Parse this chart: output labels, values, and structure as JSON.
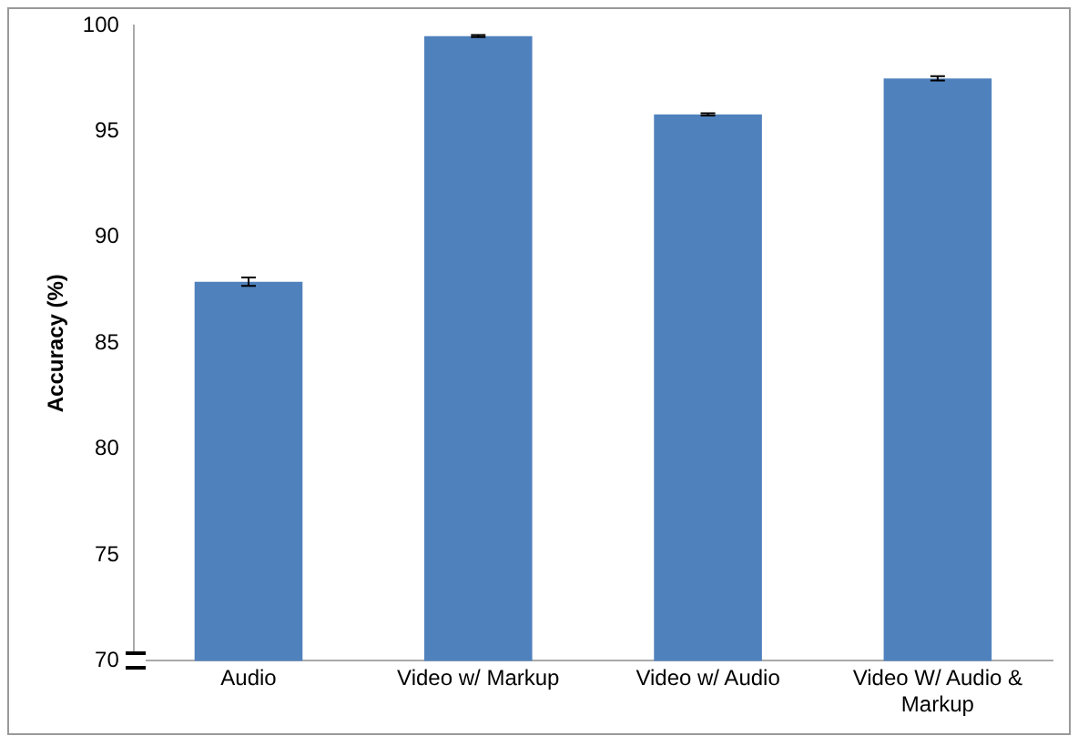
{
  "chart_data": {
    "type": "bar",
    "ylabel": "Accuracy (%)",
    "categories": [
      "Audio",
      "Video w/ Markup",
      "Video w/ Audio",
      "Video W/ Audio & Markup"
    ],
    "values": [
      87.9,
      99.5,
      95.8,
      97.5
    ],
    "errors": [
      0.2,
      0.05,
      0.05,
      0.1
    ],
    "color": "#4f81bd",
    "ylim": [
      70,
      100
    ],
    "yticks": [
      70,
      75,
      80,
      85,
      90,
      95,
      100
    ],
    "grid": false,
    "legend": false
  }
}
